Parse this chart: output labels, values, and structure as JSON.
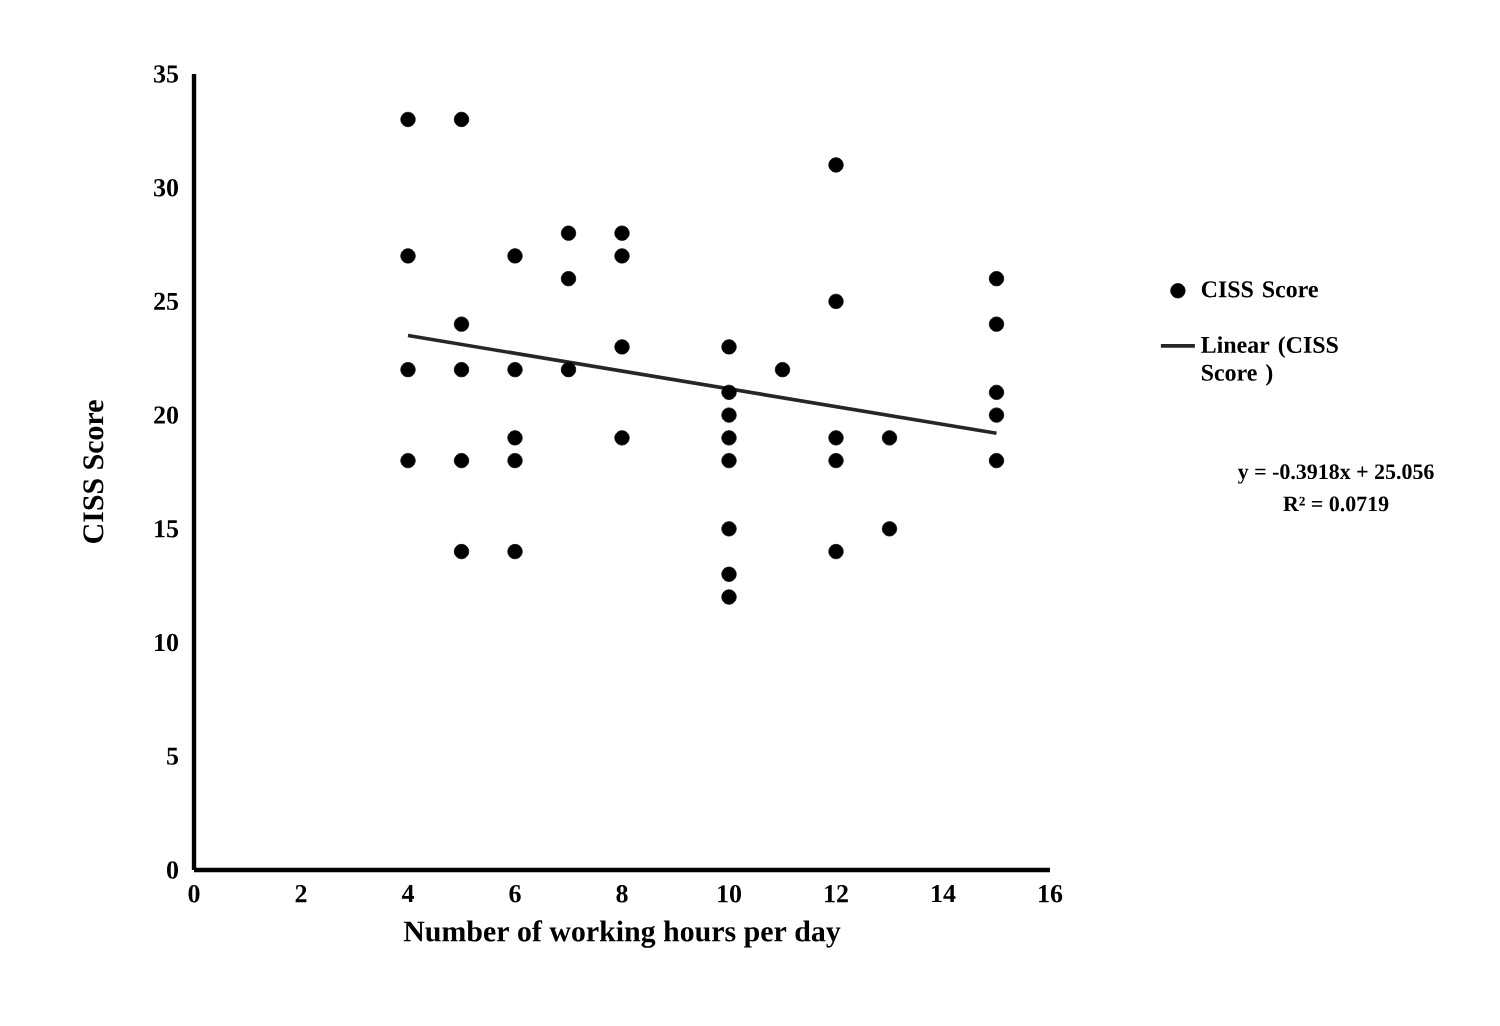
{
  "chart_data": {
    "type": "scatter",
    "xlabel": "Number of working hours per day",
    "ylabel": "CISS Score",
    "xlim": [
      0,
      16
    ],
    "xticks": [
      0,
      2,
      4,
      6,
      8,
      10,
      12,
      14,
      16
    ],
    "ylim": [
      0,
      35
    ],
    "yticks": [
      0,
      5,
      10,
      15,
      20,
      25,
      30,
      35
    ],
    "grid": false,
    "legend": "right",
    "annotations": [
      "y = -0.3918x + 25.056",
      "R² = 0.0719"
    ],
    "series": [
      {
        "name": "CISS Score",
        "marker": "circle",
        "color": "#000000",
        "x": [
          4,
          4,
          4,
          4,
          5,
          5,
          5,
          5,
          5,
          6,
          6,
          6,
          6,
          6,
          7,
          7,
          7,
          8,
          8,
          8,
          8,
          10,
          10,
          10,
          10,
          10,
          10,
          10,
          10,
          11,
          12,
          12,
          12,
          12,
          12,
          13,
          13,
          15,
          15,
          15,
          15,
          15
        ],
        "values": [
          33,
          27,
          22,
          18,
          33,
          24,
          22,
          18,
          14,
          27,
          22,
          19,
          18,
          14,
          28,
          26,
          22,
          28,
          27,
          23,
          19,
          23,
          21,
          20,
          19,
          18,
          15,
          13,
          12,
          22,
          31,
          25,
          19,
          18,
          14,
          19,
          15,
          26,
          24,
          21,
          20,
          18
        ]
      },
      {
        "name": "Linear (CISS Score )",
        "type": "line",
        "color": "#262626",
        "line_style": "solid",
        "marker": "none",
        "x": [
          4,
          15
        ],
        "values": [
          23.5,
          19.2
        ]
      }
    ]
  }
}
